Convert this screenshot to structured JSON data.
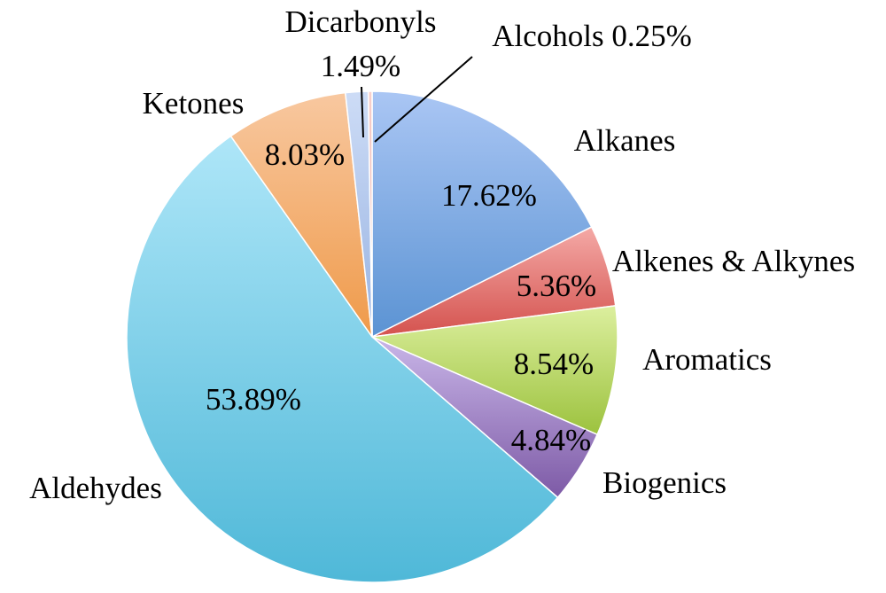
{
  "chart_data": {
    "type": "pie",
    "categories": [
      "Alkanes",
      "Alkenes & Alkynes",
      "Aromatics",
      "Biogenics",
      "Aldehydes",
      "Ketones",
      "Dicarbonyls",
      "Alcohols"
    ],
    "values": [
      17.62,
      5.36,
      8.54,
      4.84,
      53.89,
      8.03,
      1.49,
      0.25
    ],
    "value_labels": [
      "17.62%",
      "5.36%",
      "8.54%",
      "4.84%",
      "53.89%",
      "8.03%",
      "1.49%",
      "0.25%"
    ],
    "title": "",
    "legend": "none",
    "colors": {
      "Alkanes": [
        "#aac6f4",
        "#5b93d3"
      ],
      "Alkenes & Alkynes": [
        "#f4a9a6",
        "#d4524e"
      ],
      "Aromatics": [
        "#dcef9e",
        "#9cc23e"
      ],
      "Biogenics": [
        "#c9b6e8",
        "#7d5aa6"
      ],
      "Aldehydes": [
        "#aee6f8",
        "#4fb8d8"
      ],
      "Ketones": [
        "#f8c8a0",
        "#ef9a4a"
      ],
      "Dicarbonyls": [
        "#cddcf6",
        "#98b3e2"
      ],
      "Alcohols": [
        "#f8d0cc",
        "#e3a39d"
      ]
    }
  }
}
